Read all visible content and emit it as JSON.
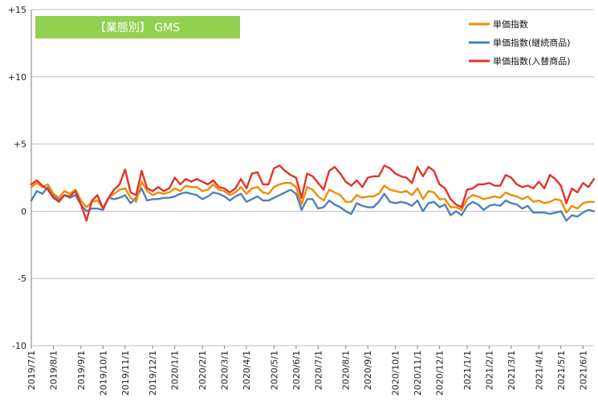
{
  "chart_data": {
    "type": "line",
    "title": "【業態別】 GMS",
    "title_bg_color": "#92D050",
    "xlabel": "",
    "ylabel": "",
    "ylim": [
      -10,
      15
    ],
    "y_ticks": [
      {
        "value": 15,
        "label": "+15"
      },
      {
        "value": 10,
        "label": "+10"
      },
      {
        "value": 5,
        "label": "+5"
      },
      {
        "value": 0,
        "label": "0"
      },
      {
        "value": -5,
        "label": "-5"
      },
      {
        "value": -10,
        "label": "-10"
      }
    ],
    "x_ticks": [
      {
        "index": 0,
        "label": "2019/7/1"
      },
      {
        "index": 4,
        "label": "2019/8/1"
      },
      {
        "index": 9,
        "label": "2019/9/1"
      },
      {
        "index": 13,
        "label": "2019/10/1"
      },
      {
        "index": 17,
        "label": "2019/11/1"
      },
      {
        "index": 22,
        "label": "2019/12/1"
      },
      {
        "index": 26,
        "label": "2020/1/1"
      },
      {
        "index": 31,
        "label": "2020/2/1"
      },
      {
        "index": 35,
        "label": "2020/3/1"
      },
      {
        "index": 39,
        "label": "2020/4/1"
      },
      {
        "index": 44,
        "label": "2020/5/1"
      },
      {
        "index": 48,
        "label": "2020/6/1"
      },
      {
        "index": 52,
        "label": "2020/7/1"
      },
      {
        "index": 57,
        "label": "2020/8/1"
      },
      {
        "index": 61,
        "label": "2020/9/1"
      },
      {
        "index": 66,
        "label": "2020/10/1"
      },
      {
        "index": 70,
        "label": "2020/11/1"
      },
      {
        "index": 74,
        "label": "2020/12/1"
      },
      {
        "index": 79,
        "label": "2021/1/1"
      },
      {
        "index": 83,
        "label": "2021/2/1"
      },
      {
        "index": 87,
        "label": "2021/3/1"
      },
      {
        "index": 92,
        "label": "2021/4/1"
      },
      {
        "index": 96,
        "label": "2021/5/1"
      },
      {
        "index": 100,
        "label": "2021/6/1"
      }
    ],
    "grid": "horizontal",
    "legend_position": "top-right",
    "series": [
      {
        "name": "単価指数",
        "color": "#F08C00",
        "values": [
          1.8,
          2.1,
          1.8,
          2.0,
          1.3,
          1.0,
          1.5,
          1.3,
          1.6,
          0.8,
          0.3,
          0.7,
          0.8,
          0.2,
          1.0,
          1.3,
          1.6,
          1.7,
          1.0,
          0.7,
          2.2,
          1.5,
          1.2,
          1.4,
          1.3,
          1.4,
          1.7,
          1.5,
          1.9,
          1.8,
          1.8,
          1.5,
          1.6,
          2.0,
          1.6,
          1.5,
          1.2,
          1.4,
          1.8,
          1.3,
          1.7,
          1.8,
          1.4,
          1.3,
          1.8,
          2.0,
          2.1,
          2.1,
          1.8,
          0.5,
          1.8,
          1.6,
          1.1,
          0.8,
          1.6,
          1.4,
          1.2,
          0.7,
          0.7,
          1.2,
          1.0,
          1.1,
          1.1,
          1.3,
          1.9,
          1.6,
          1.5,
          1.4,
          1.5,
          1.2,
          1.7,
          0.9,
          1.5,
          1.4,
          0.9,
          0.9,
          0.3,
          0.3,
          0.1,
          0.9,
          1.2,
          1.1,
          0.9,
          1.0,
          1.1,
          1.0,
          1.4,
          1.2,
          1.1,
          0.9,
          1.1,
          0.7,
          0.8,
          0.6,
          0.7,
          0.9,
          0.8,
          -0.1,
          0.4,
          0.2,
          0.6,
          0.7,
          0.7
        ]
      },
      {
        "name": "単価指数(継続商品)",
        "color": "#4F81BD",
        "values": [
          0.8,
          1.5,
          1.3,
          1.8,
          1.2,
          0.8,
          1.2,
          1.0,
          1.2,
          0.5,
          0.0,
          0.2,
          0.2,
          0.1,
          1.0,
          0.9,
          1.0,
          1.2,
          0.6,
          1.0,
          1.7,
          0.8,
          0.9,
          0.9,
          1.0,
          1.0,
          1.1,
          1.3,
          1.4,
          1.3,
          1.2,
          0.9,
          1.1,
          1.4,
          1.3,
          1.1,
          0.8,
          1.1,
          1.3,
          0.7,
          0.9,
          1.1,
          0.8,
          0.8,
          1.0,
          1.2,
          1.4,
          1.6,
          1.3,
          0.1,
          0.9,
          0.9,
          0.2,
          0.3,
          0.8,
          0.5,
          0.3,
          0.0,
          -0.2,
          0.6,
          0.4,
          0.3,
          0.3,
          0.7,
          1.3,
          0.7,
          0.6,
          0.7,
          0.6,
          0.4,
          0.8,
          0.0,
          0.6,
          0.7,
          0.3,
          0.5,
          -0.3,
          0.0,
          -0.3,
          0.4,
          0.7,
          0.5,
          0.1,
          0.4,
          0.5,
          0.4,
          0.8,
          0.6,
          0.5,
          0.2,
          0.4,
          -0.1,
          -0.1,
          -0.1,
          -0.2,
          -0.1,
          0.0,
          -0.7,
          -0.3,
          -0.4,
          -0.1,
          0.1,
          0.0
        ]
      },
      {
        "name": "単価指数(入替商品)",
        "color": "#E2322B",
        "values": [
          2.0,
          2.3,
          1.9,
          1.6,
          1.0,
          0.7,
          1.2,
          1.1,
          1.5,
          0.5,
          -0.7,
          0.8,
          1.2,
          0.2,
          1.0,
          1.6,
          2.0,
          3.1,
          1.4,
          1.2,
          3.0,
          1.7,
          1.5,
          1.8,
          1.5,
          1.7,
          2.5,
          2.0,
          2.4,
          2.2,
          2.4,
          2.2,
          2.0,
          2.3,
          1.8,
          1.7,
          1.4,
          1.7,
          2.4,
          1.7,
          2.8,
          2.9,
          2.0,
          2.0,
          3.2,
          3.4,
          3.0,
          2.7,
          2.5,
          1.0,
          2.8,
          2.6,
          2.1,
          1.6,
          3.0,
          3.3,
          2.8,
          2.2,
          1.9,
          2.3,
          1.8,
          2.5,
          2.6,
          2.6,
          3.4,
          3.2,
          2.8,
          2.6,
          2.5,
          2.1,
          3.3,
          2.6,
          3.3,
          3.0,
          2.0,
          1.7,
          0.9,
          0.5,
          0.3,
          1.6,
          1.7,
          2.0,
          2.0,
          2.1,
          1.9,
          1.9,
          2.7,
          2.5,
          2.0,
          1.8,
          1.9,
          1.7,
          2.2,
          1.7,
          2.7,
          2.4,
          1.9,
          0.6,
          1.7,
          1.4,
          2.1,
          1.8,
          2.4
        ]
      }
    ]
  }
}
